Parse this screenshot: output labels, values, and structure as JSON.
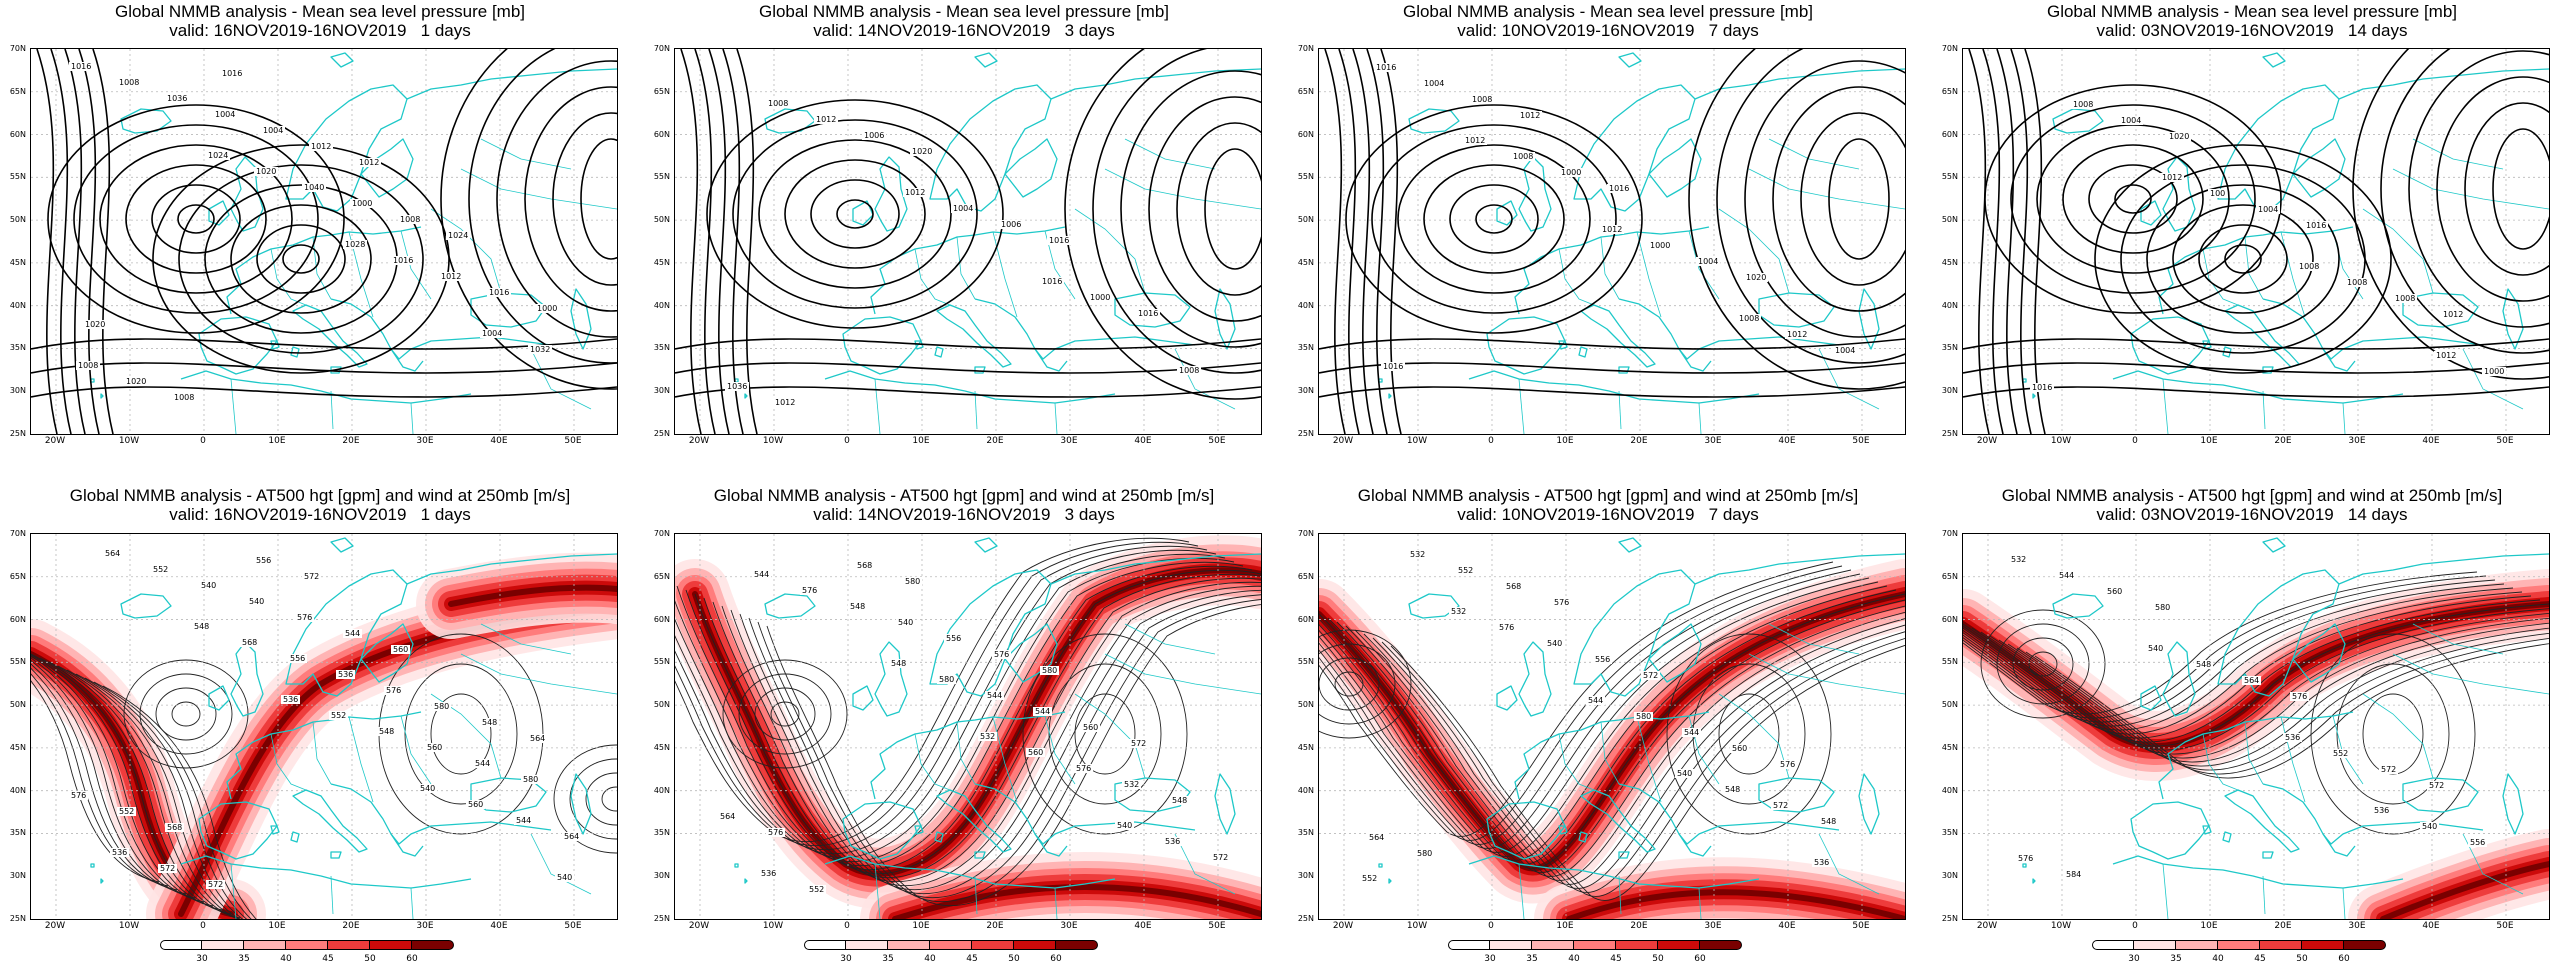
{
  "colors": {
    "coast": "#1ec8c8",
    "contour": "#000000",
    "wind": [
      "#ffe4e4",
      "#ffb4b4",
      "#ff7c7c",
      "#ee3c3c",
      "#cc0a0a",
      "#7a0000"
    ]
  },
  "lat_labels": [
    "70N",
    "65N",
    "60N",
    "55N",
    "50N",
    "45N",
    "40N",
    "35N",
    "30N",
    "25N"
  ],
  "lon_labels": [
    "20W",
    "10W",
    "0",
    "10E",
    "20E",
    "30E",
    "40E",
    "50E"
  ],
  "colorbar": {
    "labels": [
      "30",
      "35",
      "40",
      "45",
      "50",
      "60"
    ]
  },
  "panels": [
    {
      "title": "Global NMMB analysis - Mean sea level pressure [mb]",
      "valid": "valid: 16NOV2019-16NOV2019   1 days",
      "kind": "mslp",
      "contour_labels": [
        "1016",
        "1024",
        "1028",
        "1004",
        "1008",
        "1020",
        "1016",
        "1032",
        "1036",
        "1040",
        "1012",
        "1008",
        "1004",
        "1000",
        "1016",
        "1020",
        "1004",
        "1008",
        "1000",
        "1008",
        "1012",
        "1024",
        "1020",
        "1016",
        "1012"
      ]
    },
    {
      "title": "Global NMMB analysis - Mean sea level pressure [mb]",
      "valid": "valid: 14NOV2019-16NOV2019   3 days",
      "kind": "mslp",
      "contour_labels": [
        "1008",
        "1012",
        "1016",
        "1008",
        "1012",
        "1004",
        "1000",
        "1036",
        "1006",
        "1006",
        "1016",
        "1012",
        "1020",
        "1016"
      ]
    },
    {
      "title": "Global NMMB analysis - Mean sea level pressure [mb]",
      "valid": "valid: 10NOV2019-16NOV2019   7 days",
      "kind": "mslp",
      "contour_labels": [
        "1012",
        "1012",
        "1008",
        "1016",
        "1008",
        "1000",
        "1012",
        "1004",
        "1000",
        "1004",
        "1004",
        "1008",
        "1016",
        "1020",
        "1016",
        "1012"
      ]
    },
    {
      "title": "Global NMMB analysis - Mean sea level pressure [mb]",
      "valid": "valid: 03NOV2019-16NOV2019   14 days",
      "kind": "mslp",
      "contour_labels": [
        "1012",
        "1008",
        "1012",
        "1008",
        "100",
        "1008",
        "1000",
        "1004",
        "1004",
        "1008",
        "1016",
        "1020",
        "1016",
        "1012"
      ]
    },
    {
      "title": "Global NMMB analysis - AT500 hgt [gpm] and wind at 250mb [m/s]",
      "valid": "valid: 16NOV2019-16NOV2019   1 days",
      "kind": "z500",
      "contour_labels": [
        "536",
        "540",
        "540",
        "548",
        "552",
        "560",
        "564",
        "568",
        "548",
        "544",
        "552",
        "556",
        "560",
        "564",
        "540",
        "536",
        "544",
        "536",
        "540",
        "576",
        "580",
        "572",
        "576",
        "580",
        "576",
        "572",
        "544",
        "548",
        "552",
        "556",
        "560",
        "564",
        "568",
        "572"
      ]
    },
    {
      "title": "Global NMMB analysis - AT500 hgt [gpm] and wind at 250mb [m/s]",
      "valid": "valid: 14NOV2019-16NOV2019   3 days",
      "kind": "z500",
      "contour_labels": [
        "532",
        "540",
        "544",
        "548",
        "560",
        "536",
        "576",
        "580",
        "576",
        "572",
        "548",
        "544",
        "532",
        "536",
        "540",
        "544",
        "548",
        "552",
        "556",
        "560",
        "564",
        "568",
        "576",
        "572",
        "576",
        "580",
        "580"
      ]
    },
    {
      "title": "Global NMMB analysis - AT500 hgt [gpm] and wind at 250mb [m/s]",
      "valid": "valid: 10NOV2019-16NOV2019   7 days",
      "kind": "z500",
      "contour_labels": [
        "540",
        "536",
        "532",
        "544",
        "548",
        "552",
        "576",
        "580",
        "572",
        "532",
        "540",
        "544",
        "548",
        "552",
        "556",
        "560",
        "564",
        "568",
        "572",
        "576",
        "580",
        "576"
      ]
    },
    {
      "title": "Global NMMB analysis - AT500 hgt [gpm] and wind at 250mb [m/s]",
      "valid": "valid: 03NOV2019-16NOV2019   14 days",
      "kind": "z500",
      "contour_labels": [
        "536",
        "532",
        "540",
        "536",
        "540",
        "544",
        "548",
        "552",
        "556",
        "560",
        "564",
        "572",
        "576",
        "580",
        "576",
        "572",
        "584"
      ]
    }
  ]
}
